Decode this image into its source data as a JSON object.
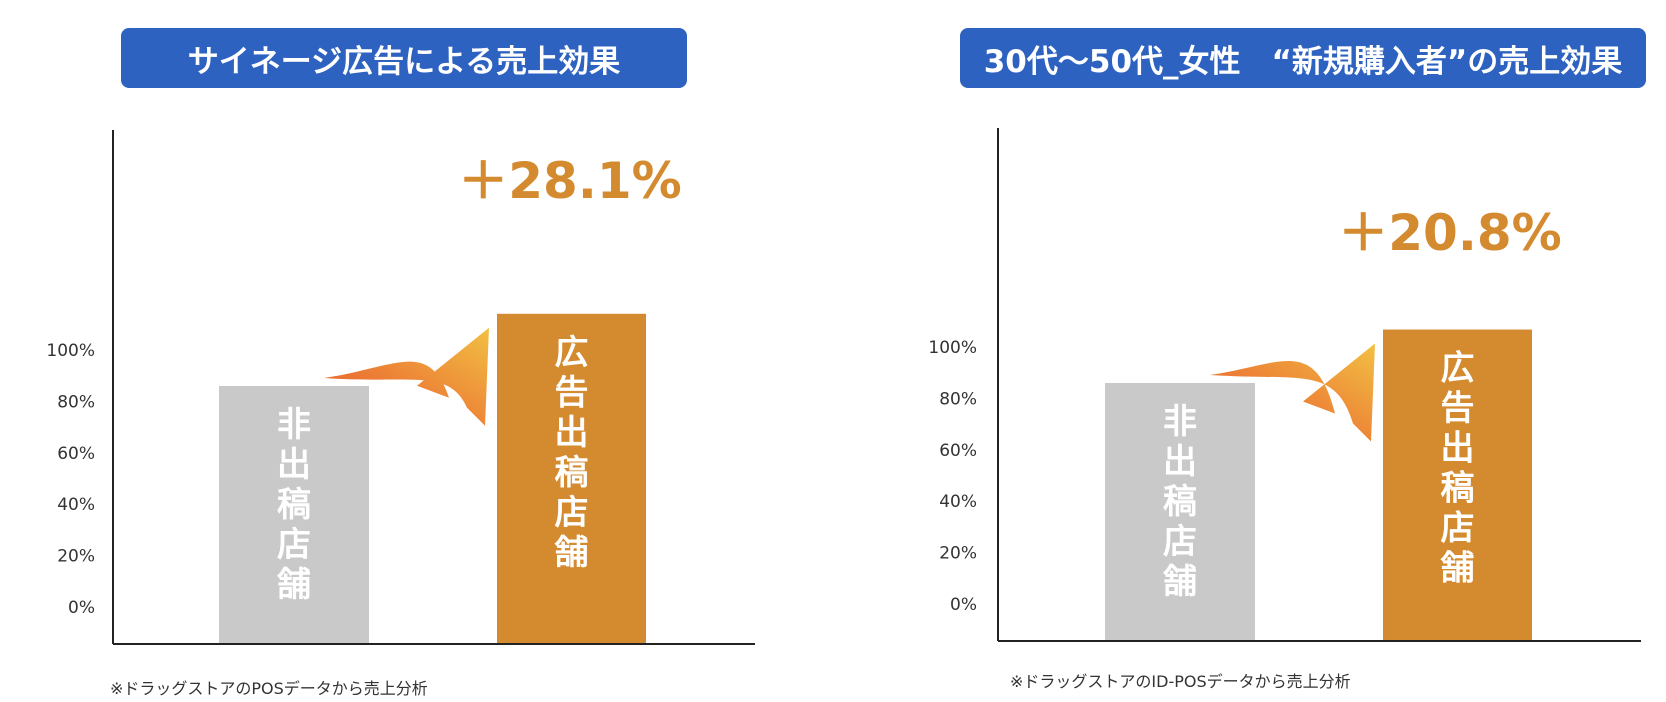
{
  "colors": {
    "banner": "#2e62c0",
    "bar_baseline": "#c9c9c9",
    "bar_ad": "#d48a2e",
    "percent_text": "#d48a2e",
    "arrow_start": "#e8502c",
    "arrow_end": "#f2c043",
    "bar_text": "#ffffff",
    "axis": "#222222"
  },
  "icons": [
    "curved-up-arrow-icon"
  ],
  "chart_data": [
    {
      "type": "bar",
      "title": "サイネージ広告による売上効果",
      "categories": [
        "非出稿店舗",
        "広告出稿店舗"
      ],
      "values": [
        100,
        128.1
      ],
      "yticks": [
        "0%",
        "20%",
        "40%",
        "60%",
        "80%",
        "100%"
      ],
      "ylim": [
        0,
        140
      ],
      "annotation": "＋28.1%",
      "grid": false,
      "footnote": "※ドラッグストアのPOSデータから売上分析"
    },
    {
      "type": "bar",
      "title": "30代〜50代_女性　“新規購入者”の売上効果",
      "categories": [
        "非出稿店舗",
        "広告出稿店舗"
      ],
      "values": [
        100,
        120.8
      ],
      "yticks": [
        "0%",
        "20%",
        "40%",
        "60%",
        "80%",
        "100%"
      ],
      "ylim": [
        0,
        140
      ],
      "annotation": "＋20.8%",
      "grid": false,
      "footnote": "※ドラッグストアのID-POSデータから売上分析"
    }
  ]
}
